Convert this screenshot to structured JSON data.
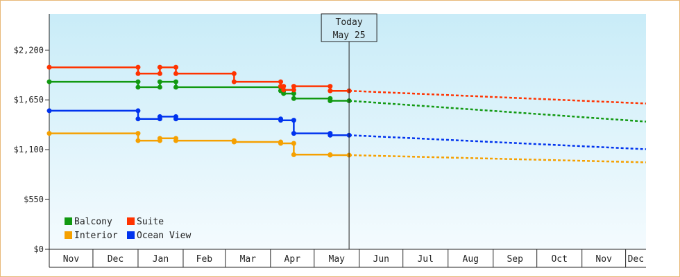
{
  "chart_data": {
    "type": "line",
    "line_style": "step",
    "currency": "$",
    "y_ticks": [
      "$0",
      "$550",
      "$1,100",
      "$1,650",
      "$2,200"
    ],
    "y_tick_values": [
      0,
      550,
      1100,
      1650,
      2200
    ],
    "ylim": [
      0,
      2600
    ],
    "x_months": [
      "Nov",
      "Dec",
      "Jan",
      "Feb",
      "Mar",
      "Apr",
      "May",
      "Jun",
      "Jul",
      "Aug",
      "Sep",
      "Oct",
      "Nov",
      "Dec"
    ],
    "x_month_starts": [
      "2023-11-01",
      "2023-12-01",
      "2024-01-01",
      "2024-02-01",
      "2024-03-01",
      "2024-04-01",
      "2024-05-01",
      "2024-06-01",
      "2024-07-01",
      "2024-08-01",
      "2024-09-01",
      "2024-10-01",
      "2024-11-01",
      "2024-12-01"
    ],
    "xlim": [
      "2023-11-01",
      "2024-12-15"
    ],
    "today": {
      "line1": "Today",
      "line2": "May 25",
      "date": "2024-05-25"
    },
    "grid": false,
    "legend": "bottom-left",
    "series": [
      {
        "name": "Balcony",
        "color": "#119911",
        "points": [
          [
            "2023-11-01",
            1850
          ],
          [
            "2024-01-01",
            1850
          ],
          [
            "2024-01-01",
            1790
          ],
          [
            "2024-01-16",
            1790
          ],
          [
            "2024-01-16",
            1850
          ],
          [
            "2024-01-27",
            1850
          ],
          [
            "2024-01-27",
            1790
          ],
          [
            "2024-04-08",
            1790
          ],
          [
            "2024-04-08",
            1750
          ],
          [
            "2024-04-10",
            1750
          ],
          [
            "2024-04-10",
            1720
          ],
          [
            "2024-04-17",
            1720
          ],
          [
            "2024-04-17",
            1665
          ],
          [
            "2024-05-12",
            1665
          ],
          [
            "2024-05-12",
            1640
          ],
          [
            "2024-05-25",
            1640
          ]
        ],
        "forecast": [
          [
            "2024-05-25",
            1640
          ],
          [
            "2024-12-15",
            1410
          ]
        ]
      },
      {
        "name": "Suite",
        "color": "#ff3300",
        "points": [
          [
            "2023-11-01",
            2010
          ],
          [
            "2024-01-01",
            2010
          ],
          [
            "2024-01-01",
            1940
          ],
          [
            "2024-01-16",
            1940
          ],
          [
            "2024-01-16",
            2010
          ],
          [
            "2024-01-27",
            2010
          ],
          [
            "2024-01-27",
            1940
          ],
          [
            "2024-03-07",
            1940
          ],
          [
            "2024-03-07",
            1850
          ],
          [
            "2024-04-08",
            1850
          ],
          [
            "2024-04-08",
            1800
          ],
          [
            "2024-04-10",
            1800
          ],
          [
            "2024-04-10",
            1760
          ],
          [
            "2024-04-17",
            1760
          ],
          [
            "2024-04-17",
            1800
          ],
          [
            "2024-05-12",
            1800
          ],
          [
            "2024-05-12",
            1750
          ],
          [
            "2024-05-25",
            1750
          ]
        ],
        "forecast": [
          [
            "2024-05-25",
            1750
          ],
          [
            "2024-12-15",
            1610
          ]
        ]
      },
      {
        "name": "Interior",
        "color": "#f5a000",
        "points": [
          [
            "2023-11-01",
            1280
          ],
          [
            "2024-01-01",
            1280
          ],
          [
            "2024-01-01",
            1200
          ],
          [
            "2024-01-16",
            1200
          ],
          [
            "2024-01-16",
            1225
          ],
          [
            "2024-01-27",
            1225
          ],
          [
            "2024-01-27",
            1200
          ],
          [
            "2024-03-07",
            1200
          ],
          [
            "2024-03-07",
            1185
          ],
          [
            "2024-04-08",
            1185
          ],
          [
            "2024-04-08",
            1170
          ],
          [
            "2024-04-17",
            1170
          ],
          [
            "2024-04-17",
            1045
          ],
          [
            "2024-05-12",
            1045
          ],
          [
            "2024-05-12",
            1040
          ],
          [
            "2024-05-25",
            1040
          ]
        ],
        "forecast": [
          [
            "2024-05-25",
            1040
          ],
          [
            "2024-12-15",
            960
          ]
        ]
      },
      {
        "name": "Ocean View",
        "color": "#0033ee",
        "points": [
          [
            "2023-11-01",
            1530
          ],
          [
            "2024-01-01",
            1530
          ],
          [
            "2024-01-01",
            1440
          ],
          [
            "2024-01-16",
            1440
          ],
          [
            "2024-01-16",
            1465
          ],
          [
            "2024-01-27",
            1465
          ],
          [
            "2024-01-27",
            1440
          ],
          [
            "2024-04-08",
            1440
          ],
          [
            "2024-04-08",
            1425
          ],
          [
            "2024-04-17",
            1425
          ],
          [
            "2024-04-17",
            1280
          ],
          [
            "2024-05-12",
            1280
          ],
          [
            "2024-05-12",
            1260
          ],
          [
            "2024-05-25",
            1260
          ]
        ],
        "forecast": [
          [
            "2024-05-25",
            1260
          ],
          [
            "2024-12-15",
            1105
          ]
        ]
      }
    ]
  }
}
